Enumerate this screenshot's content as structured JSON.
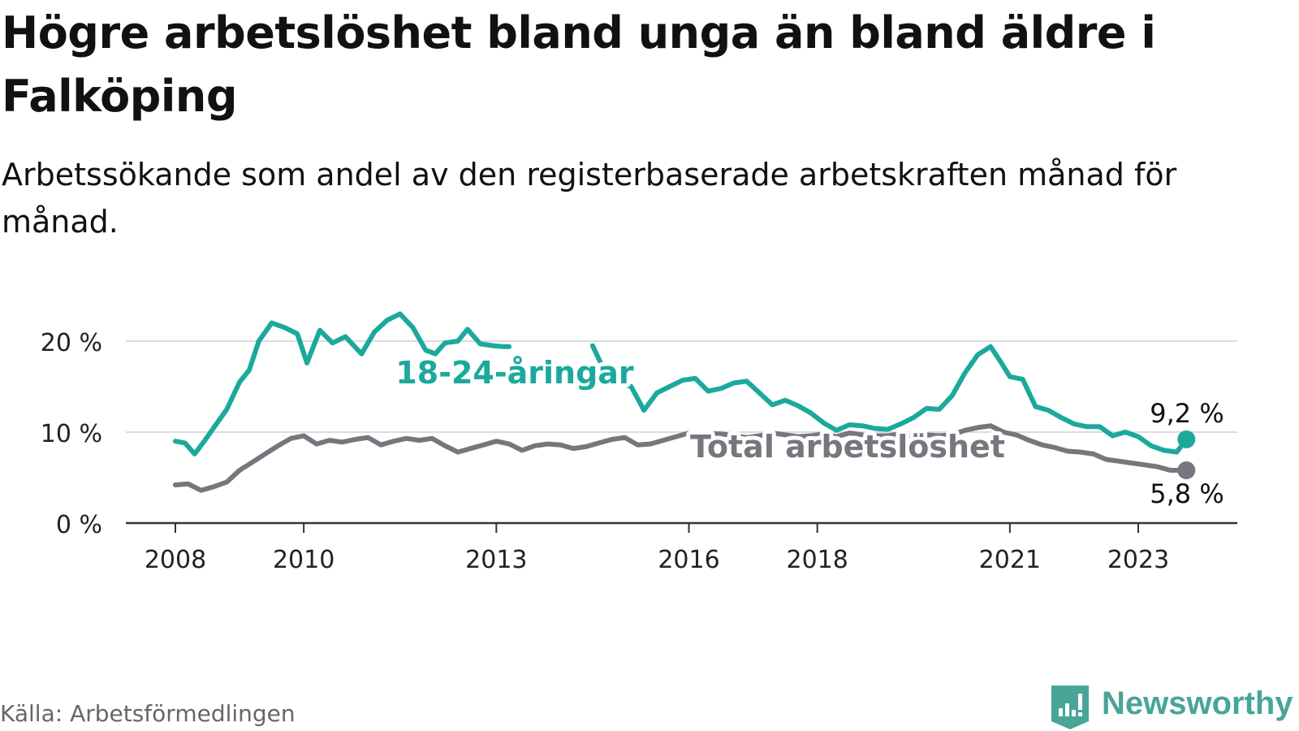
{
  "title": "Högre arbetslöshet bland unga än bland äldre i Falköping",
  "subtitle": "Arbetssökande som andel av den registerbaserade arbetskraften månad för månad.",
  "source": "Källa: Arbetsförmedlingen",
  "brand": "Newsworthy",
  "colors": {
    "youth": "#1ba99c",
    "total": "#76767e",
    "grid": "#dcdcdc",
    "axis": "#333333",
    "brand": "#48a597"
  },
  "chart_data": {
    "type": "line",
    "ylim": [
      0,
      25
    ],
    "y_ticks": [
      0,
      10,
      20
    ],
    "y_tick_labels": [
      "0 %",
      "10 %",
      "20 %"
    ],
    "x_ticks": [
      2008,
      2010,
      2013,
      2016,
      2018,
      2021,
      2023
    ],
    "x_tick_labels": [
      "2008",
      "2010",
      "2013",
      "2016",
      "2018",
      "2021",
      "2023"
    ],
    "xlim": [
      2007.25,
      2024.5
    ],
    "grid": true,
    "series": [
      {
        "name": "18-24-åringar",
        "label": "18-24-åringar",
        "end_label": "9,2 %",
        "x": [
          2008.0,
          2008.15,
          2008.3,
          2008.45,
          2008.6,
          2008.8,
          2009.0,
          2009.15,
          2009.3,
          2009.5,
          2009.7,
          2009.9,
          2010.05,
          2010.25,
          2010.45,
          2010.65,
          2010.9,
          2011.1,
          2011.3,
          2011.5,
          2011.7,
          2011.9,
          2012.05,
          2012.2,
          2012.4,
          2012.55,
          2012.75,
          2012.95,
          2013.1,
          2013.2,
          2014.5,
          2014.7,
          2014.9,
          2015.1,
          2015.3,
          2015.5,
          2015.7,
          2015.9,
          2016.1,
          2016.3,
          2016.5,
          2016.7,
          2016.9,
          2017.1,
          2017.3,
          2017.5,
          2017.7,
          2017.9,
          2018.1,
          2018.3,
          2018.5,
          2018.7,
          2018.9,
          2019.1,
          2019.3,
          2019.5,
          2019.7,
          2019.9,
          2020.1,
          2020.3,
          2020.5,
          2020.7,
          2020.85,
          2021.0,
          2021.2,
          2021.4,
          2021.6,
          2021.8,
          2022.0,
          2022.2,
          2022.4,
          2022.6,
          2022.8,
          2023.0,
          2023.2,
          2023.4,
          2023.6,
          2023.75
        ],
        "y": [
          9.0,
          8.8,
          7.6,
          9.0,
          10.5,
          12.5,
          15.5,
          16.8,
          20.0,
          22.0,
          21.5,
          20.8,
          17.6,
          21.2,
          19.8,
          20.5,
          18.6,
          21.0,
          22.3,
          23.0,
          21.5,
          19.0,
          18.6,
          19.8,
          20.0,
          21.3,
          19.7,
          19.5,
          19.4,
          19.4,
          19.5,
          16.5,
          15.5,
          15.0,
          12.4,
          14.3,
          15.0,
          15.7,
          15.9,
          14.5,
          14.8,
          15.4,
          15.6,
          14.3,
          13.0,
          13.5,
          12.9,
          12.1,
          11.0,
          10.2,
          10.8,
          10.7,
          10.4,
          10.3,
          10.9,
          11.6,
          12.6,
          12.5,
          14.0,
          16.5,
          18.5,
          19.4,
          17.8,
          16.1,
          15.8,
          12.8,
          12.4,
          11.6,
          10.9,
          10.6,
          10.6,
          9.6,
          10.0,
          9.5,
          8.5,
          8.0,
          7.8,
          9.2
        ]
      },
      {
        "name": "Total arbetslöshet",
        "label": "Total arbetslöshet",
        "end_label": "5,8 %",
        "x": [
          2008.0,
          2008.2,
          2008.4,
          2008.6,
          2008.8,
          2009.0,
          2009.2,
          2009.4,
          2009.6,
          2009.8,
          2010.0,
          2010.2,
          2010.4,
          2010.6,
          2010.8,
          2011.0,
          2011.2,
          2011.4,
          2011.6,
          2011.8,
          2012.0,
          2012.2,
          2012.4,
          2012.6,
          2012.8,
          2013.0,
          2013.2,
          2013.4,
          2013.6,
          2013.8,
          2014.0,
          2014.2,
          2014.4,
          2014.6,
          2014.8,
          2015.0,
          2015.2,
          2015.4,
          2015.6,
          2015.8,
          2016.0,
          2016.5,
          2016.7,
          2016.9,
          2017.1,
          2017.3,
          2017.5,
          2017.7,
          2017.9,
          2018.1,
          2018.3,
          2018.5,
          2018.7,
          2018.9,
          2019.1,
          2019.3,
          2019.5,
          2019.7,
          2019.9,
          2020.1,
          2020.3,
          2020.5,
          2020.7,
          2020.9,
          2021.1,
          2021.3,
          2021.5,
          2021.7,
          2021.9,
          2022.1,
          2022.3,
          2022.5,
          2022.7,
          2022.9,
          2023.1,
          2023.3,
          2023.5,
          2023.75
        ],
        "y": [
          4.2,
          4.3,
          3.6,
          4.0,
          4.5,
          5.8,
          6.7,
          7.6,
          8.5,
          9.3,
          9.6,
          8.7,
          9.1,
          8.9,
          9.2,
          9.4,
          8.6,
          9.0,
          9.3,
          9.1,
          9.3,
          8.5,
          7.8,
          8.2,
          8.6,
          9.0,
          8.7,
          8.0,
          8.5,
          8.7,
          8.6,
          8.2,
          8.4,
          8.8,
          9.2,
          9.4,
          8.6,
          8.7,
          9.1,
          9.5,
          9.9,
          9.8,
          9.6,
          9.4,
          9.6,
          9.9,
          9.7,
          9.5,
          9.6,
          9.8,
          9.5,
          9.9,
          9.7,
          9.6,
          9.6,
          9.8,
          9.5,
          9.7,
          9.6,
          9.7,
          10.2,
          10.5,
          10.7,
          10.0,
          9.7,
          9.1,
          8.6,
          8.3,
          7.9,
          7.8,
          7.6,
          7.0,
          6.8,
          6.6,
          6.4,
          6.2,
          5.8,
          5.8
        ]
      }
    ]
  }
}
